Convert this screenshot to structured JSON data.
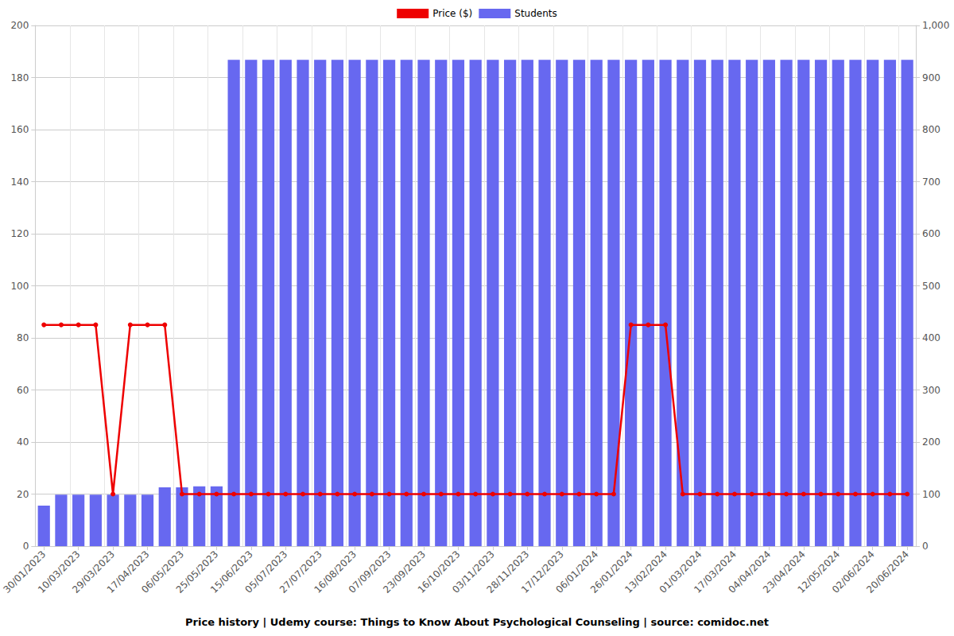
{
  "chart_data": {
    "type": "bar",
    "title": "Price history | Udemy course: Things to Know About Psychological Counseling | source: comidoc.net",
    "categories": [
      "30/01/2023",
      null,
      "10/03/2023",
      null,
      "29/03/2023",
      null,
      "17/04/2023",
      null,
      "06/05/2023",
      null,
      "25/05/2023",
      null,
      "15/06/2023",
      null,
      "05/07/2023",
      null,
      "27/07/2023",
      null,
      "16/08/2023",
      null,
      "07/09/2023",
      null,
      "23/09/2023",
      null,
      "16/10/2023",
      null,
      "03/11/2023",
      null,
      "28/11/2023",
      null,
      "17/12/2023",
      null,
      "06/01/2024",
      null,
      "26/01/2024",
      null,
      "13/02/2024",
      null,
      "01/03/2024",
      null,
      "17/03/2024",
      null,
      "04/04/2024",
      null,
      "23/04/2024",
      null,
      "12/05/2024",
      null,
      "02/06/2024",
      null,
      "20/06/2024"
    ],
    "series": [
      {
        "name": "Price ($)",
        "type": "line",
        "color": "#ee0000",
        "marker": "circle",
        "values": [
          85,
          85,
          85,
          85,
          20,
          85,
          85,
          85,
          20,
          20,
          20,
          20,
          20,
          20,
          20,
          20,
          20,
          20,
          20,
          20,
          20,
          20,
          20,
          20,
          20,
          20,
          20,
          20,
          20,
          20,
          20,
          20,
          20,
          20,
          85,
          85,
          85,
          20,
          20,
          20,
          20,
          20,
          20,
          20,
          20,
          20,
          20,
          20,
          20,
          20,
          20
        ]
      },
      {
        "name": "Students",
        "type": "bar",
        "color": "#6768f0",
        "axis": "y2",
        "values": [
          78,
          99,
          99,
          99,
          99,
          99,
          99,
          113,
          113,
          115,
          115,
          934,
          934,
          934,
          934,
          934,
          934,
          934,
          934,
          934,
          934,
          934,
          934,
          934,
          934,
          934,
          934,
          934,
          934,
          934,
          934,
          934,
          934,
          934,
          934,
          934,
          934,
          934,
          934,
          934,
          934,
          934,
          934,
          934,
          934,
          934,
          934,
          934,
          934,
          934,
          934
        ]
      }
    ],
    "ylim": [
      0,
      200
    ],
    "yticks": [
      0,
      20,
      40,
      60,
      80,
      100,
      120,
      140,
      160,
      180,
      200
    ],
    "y2lim": [
      0,
      1000
    ],
    "y2ticks": [
      0,
      100,
      200,
      300,
      400,
      500,
      600,
      700,
      800,
      900,
      1000
    ],
    "grid": true,
    "legend": "top"
  }
}
